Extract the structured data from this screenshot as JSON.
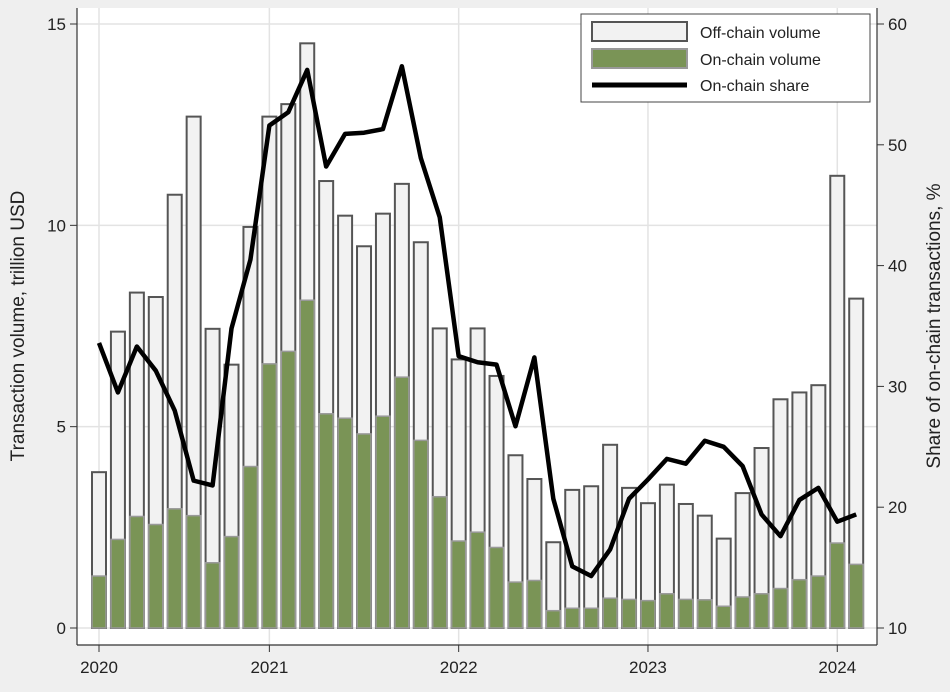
{
  "chart_data": {
    "type": "bar",
    "title": "",
    "xlabel": "",
    "ylabel": "Transaction volume, trillion USD",
    "y2label": "Share of on-chain transactions, %",
    "ylim": [
      0,
      15
    ],
    "y2lim": [
      10,
      60
    ],
    "yticks": [
      0,
      5,
      10,
      15
    ],
    "y2ticks": [
      10,
      20,
      30,
      40,
      50,
      60
    ],
    "xticks": [
      {
        "label": "2020",
        "at_index": 0
      },
      {
        "label": "2021",
        "at_index": 9
      },
      {
        "label": "2022",
        "at_index": 19
      },
      {
        "label": "2023",
        "at_index": 29
      },
      {
        "label": "2024",
        "at_index": 39
      }
    ],
    "grid": true,
    "legend_position": "top-right",
    "colors": {
      "offchain_fill": "#f2f2f2",
      "offchain_stroke": "#555555",
      "onchain_fill": "#7a9456",
      "onchain_stroke": "#999999",
      "share_line": "#000000"
    },
    "series": [
      {
        "name": "Off-chain volume",
        "kind": "bar-total",
        "axis": "left",
        "values": [
          3.87,
          7.36,
          8.33,
          8.22,
          10.76,
          12.7,
          7.43,
          6.54,
          9.96,
          12.7,
          13.01,
          14.52,
          11.1,
          10.24,
          9.48,
          10.29,
          11.03,
          9.58,
          7.44,
          6.67,
          7.44,
          6.26,
          4.29,
          3.7,
          2.13,
          3.43,
          3.52,
          4.55,
          3.48,
          3.1,
          3.56,
          3.08,
          2.79,
          2.22,
          3.35,
          4.47,
          5.68,
          5.85,
          6.03,
          11.23,
          8.18
        ]
      },
      {
        "name": "On-chain volume",
        "kind": "bar",
        "axis": "left",
        "values": [
          1.29,
          2.2,
          2.77,
          2.57,
          2.96,
          2.79,
          1.62,
          2.27,
          4.01,
          6.56,
          6.87,
          8.14,
          5.32,
          5.21,
          4.82,
          5.26,
          6.23,
          4.66,
          3.26,
          2.16,
          2.38,
          2.0,
          1.14,
          1.18,
          0.43,
          0.49,
          0.49,
          0.74,
          0.71,
          0.68,
          0.85,
          0.71,
          0.7,
          0.54,
          0.77,
          0.85,
          0.98,
          1.2,
          1.29,
          2.11,
          1.58
        ]
      },
      {
        "name": "On-chain share",
        "kind": "line",
        "axis": "right",
        "values": [
          33.6,
          29.5,
          33.3,
          31.3,
          28.0,
          22.2,
          21.8,
          34.8,
          40.5,
          51.6,
          52.7,
          56.2,
          48.2,
          50.9,
          51.0,
          51.3,
          56.5,
          48.9,
          44.0,
          32.5,
          32.0,
          31.8,
          26.7,
          32.4,
          20.7,
          15.1,
          14.3,
          16.5,
          20.7,
          22.3,
          24.0,
          23.6,
          25.5,
          25.0,
          23.4,
          19.4,
          17.6,
          20.6,
          21.6,
          18.8,
          19.4
        ]
      }
    ]
  }
}
